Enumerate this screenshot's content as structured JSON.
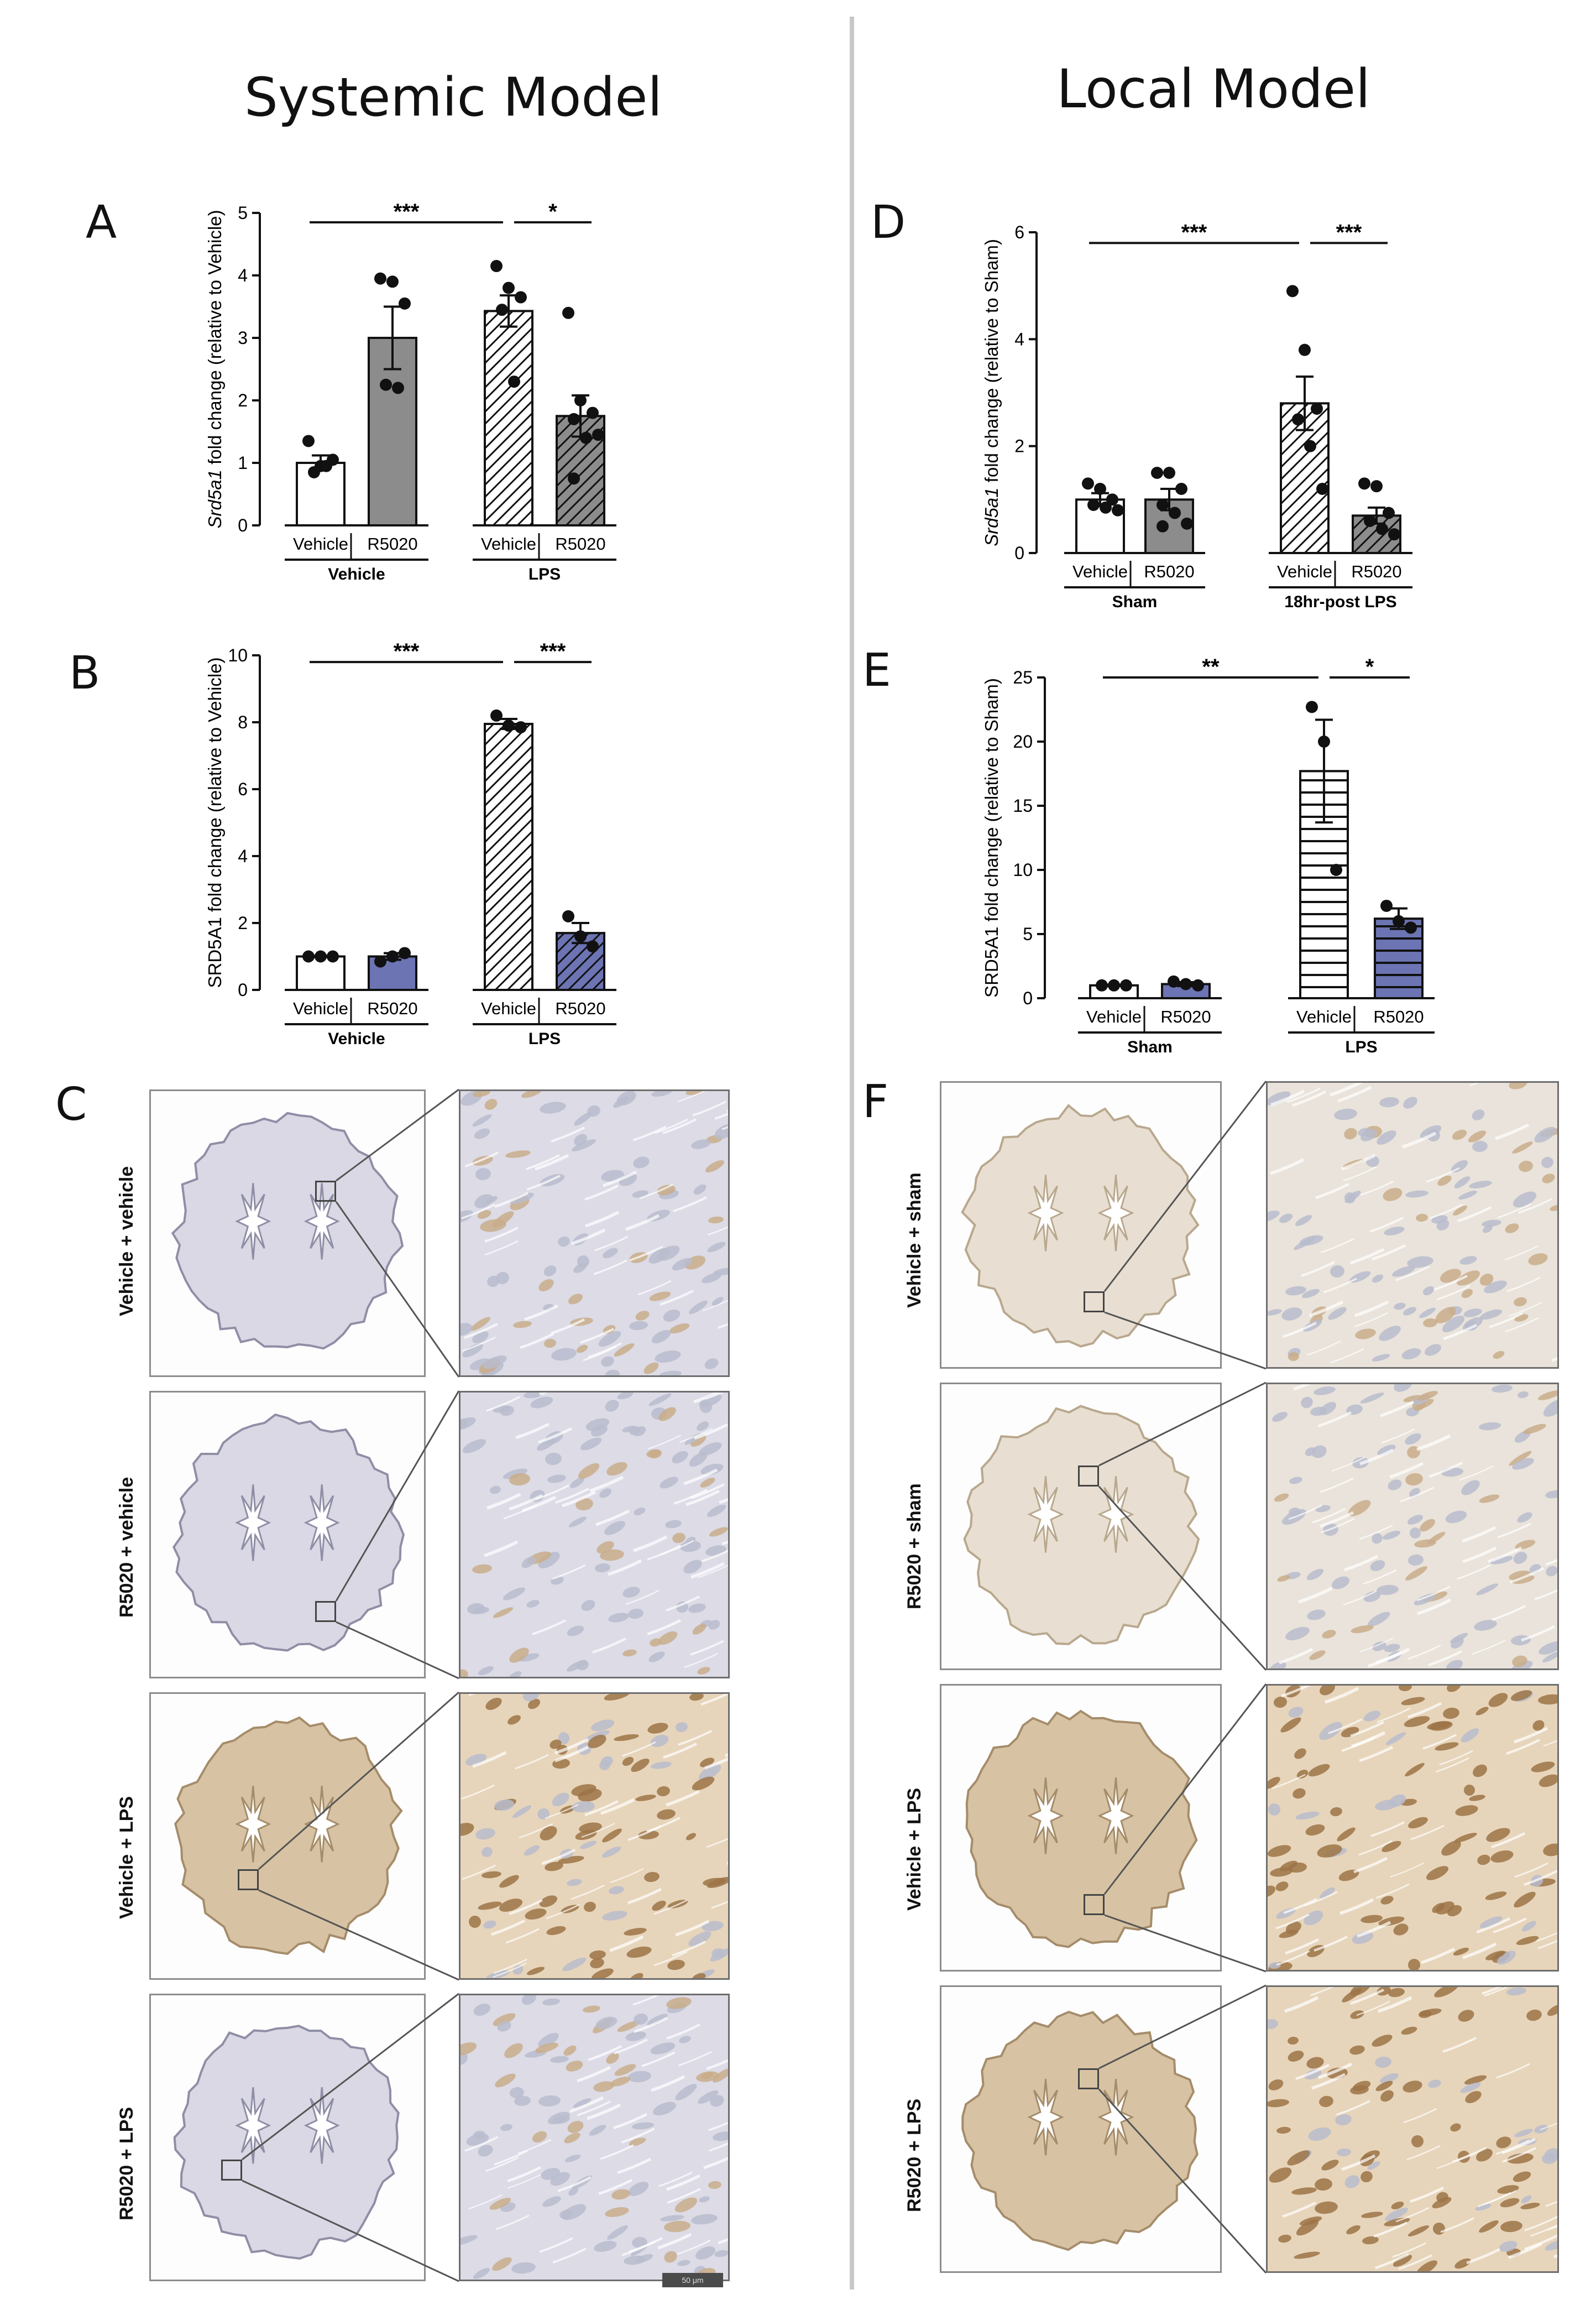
{
  "titles": {
    "left": "Systemic Model",
    "right": "Local Model"
  },
  "panel_letters": {
    "A": "A",
    "B": "B",
    "C": "C",
    "D": "D",
    "E": "E",
    "F": "F"
  },
  "colors": {
    "white_bar": "#ffffff",
    "gray_bar": "#8c8c8c",
    "blue_bar": "#6c74b3",
    "ihc_blue_tissue": "#d9d8e4",
    "ihc_brown_tissue": "#d7c3a3",
    "micrograph_blue": "#b9bccd",
    "micrograph_brown": "#c9ad8a"
  },
  "chart_data": [
    {
      "id": "A",
      "type": "bar",
      "ylabel_italic": "Srd5a1",
      "ylabel_rest": " fold change (relative to Vehicle)",
      "ylim": [
        0,
        5
      ],
      "yticks": [
        "0",
        "1",
        "2",
        "3",
        "4",
        "5"
      ],
      "categories": [
        "Vehicle",
        "R5020",
        "Vehicle",
        "R5020"
      ],
      "groups": [
        {
          "label": "Vehicle",
          "span": [
            0,
            1
          ]
        },
        {
          "label": "LPS",
          "span": [
            2,
            3
          ]
        }
      ],
      "values": [
        1.0,
        3.0,
        3.43,
        1.75
      ],
      "sem": [
        0.12,
        0.5,
        0.25,
        0.33
      ],
      "fills": [
        "white",
        "gray",
        "hatch-white",
        "hatch-gray"
      ],
      "points": [
        [
          1.35,
          0.95,
          1.05,
          0.85,
          0.95
        ],
        [
          3.95,
          3.9,
          3.55,
          2.25,
          2.2
        ],
        [
          4.15,
          3.8,
          3.65,
          3.45,
          2.3
        ],
        [
          3.4,
          2.0,
          1.8,
          1.7,
          1.4,
          1.45,
          0.75
        ]
      ],
      "significance": [
        {
          "label": "***",
          "from": 0,
          "to": 2,
          "y": 4.85
        },
        {
          "label": "*",
          "from": 2,
          "to": 3,
          "y": 4.85
        }
      ]
    },
    {
      "id": "B",
      "type": "bar",
      "ylabel_italic": "",
      "ylabel_rest": "SRD5A1 fold change (relative to Vehicle)",
      "ylim": [
        0,
        10
      ],
      "yticks": [
        "0",
        "2",
        "4",
        "6",
        "8",
        "10"
      ],
      "categories": [
        "Vehicle",
        "R5020",
        "Vehicle",
        "R5020"
      ],
      "groups": [
        {
          "label": "Vehicle",
          "span": [
            0,
            1
          ]
        },
        {
          "label": "LPS",
          "span": [
            2,
            3
          ]
        }
      ],
      "values": [
        1.0,
        1.0,
        7.95,
        1.7
      ],
      "sem": [
        0.02,
        0.1,
        0.15,
        0.3
      ],
      "fills": [
        "white",
        "blue",
        "hatch-white",
        "hatch-blue"
      ],
      "points": [
        [
          1.0,
          1.0,
          1.0
        ],
        [
          0.85,
          1.0,
          1.1
        ],
        [
          8.2,
          7.9,
          7.85
        ],
        [
          2.2,
          1.6,
          1.3
        ]
      ],
      "significance": [
        {
          "label": "***",
          "from": 0,
          "to": 2,
          "y": 9.8
        },
        {
          "label": "***",
          "from": 2,
          "to": 3,
          "y": 9.8
        }
      ]
    },
    {
      "id": "D",
      "type": "bar",
      "ylabel_italic": "Srd5a1",
      "ylabel_rest": " fold change (relative to Sham)",
      "ylim": [
        0,
        6
      ],
      "yticks": [
        "0",
        "2",
        "4",
        "6"
      ],
      "categories": [
        "Vehicle",
        "R5020",
        "Vehicle",
        "R5020"
      ],
      "groups": [
        {
          "label": "Sham",
          "span": [
            0,
            1
          ]
        },
        {
          "label": "18hr-post LPS",
          "span": [
            2,
            3
          ]
        }
      ],
      "values": [
        1.0,
        1.0,
        2.8,
        0.7
      ],
      "sem": [
        0.12,
        0.2,
        0.5,
        0.15
      ],
      "fills": [
        "white",
        "gray",
        "hatch-white",
        "hatch-gray"
      ],
      "points": [
        [
          1.3,
          1.2,
          1.0,
          0.9,
          0.85,
          0.8
        ],
        [
          1.5,
          1.5,
          1.2,
          0.9,
          0.75,
          0.55,
          0.5
        ],
        [
          4.9,
          3.8,
          2.7,
          2.5,
          2.0,
          1.2
        ],
        [
          1.3,
          1.25,
          0.75,
          0.6,
          0.45,
          0.35
        ]
      ],
      "significance": [
        {
          "label": "***",
          "from": 0,
          "to": 2,
          "y": 5.8
        },
        {
          "label": "***",
          "from": 2,
          "to": 3,
          "y": 5.8
        }
      ]
    },
    {
      "id": "E",
      "type": "bar",
      "ylabel_italic": "",
      "ylabel_rest": "SRD5A1 fold change (relative to Sham)",
      "ylim": [
        0,
        25
      ],
      "yticks": [
        "0",
        "5",
        "10",
        "15",
        "20",
        "25"
      ],
      "categories": [
        "Vehicle",
        "R5020",
        "Vehicle",
        "R5020"
      ],
      "groups": [
        {
          "label": "Sham",
          "span": [
            0,
            1
          ]
        },
        {
          "label": "LPS",
          "span": [
            2,
            3
          ]
        }
      ],
      "values": [
        1.0,
        1.1,
        17.7,
        6.2
      ],
      "sem": [
        0.05,
        0.15,
        4.0,
        0.8
      ],
      "fills": [
        "white",
        "blue",
        "hstripe-white",
        "hstripe-blue"
      ],
      "points": [
        [
          1.0,
          1.0,
          1.0
        ],
        [
          1.3,
          1.1,
          1.0
        ],
        [
          22.7,
          20.0,
          10.0
        ],
        [
          7.2,
          6.0,
          5.5
        ]
      ],
      "significance": [
        {
          "label": "**",
          "from": 0,
          "to": 2,
          "y": 25.0
        },
        {
          "label": "*",
          "from": 2,
          "to": 3,
          "y": 25.0
        }
      ]
    }
  ],
  "ihc_left": {
    "rows": [
      {
        "label": "Vehicle + vehicle",
        "stain": "blue"
      },
      {
        "label": "R5020 + vehicle",
        "stain": "blue"
      },
      {
        "label": "Vehicle + LPS",
        "stain": "brown"
      },
      {
        "label": "R5020 + LPS",
        "stain": "blue"
      }
    ],
    "scale_bar": "50 μm"
  },
  "ihc_right": {
    "rows": [
      {
        "label": "Vehicle + sham",
        "stain": "light"
      },
      {
        "label": "R5020 + sham",
        "stain": "light"
      },
      {
        "label": "Vehicle + LPS",
        "stain": "brown"
      },
      {
        "label": "R5020 + LPS",
        "stain": "brown"
      }
    ]
  }
}
